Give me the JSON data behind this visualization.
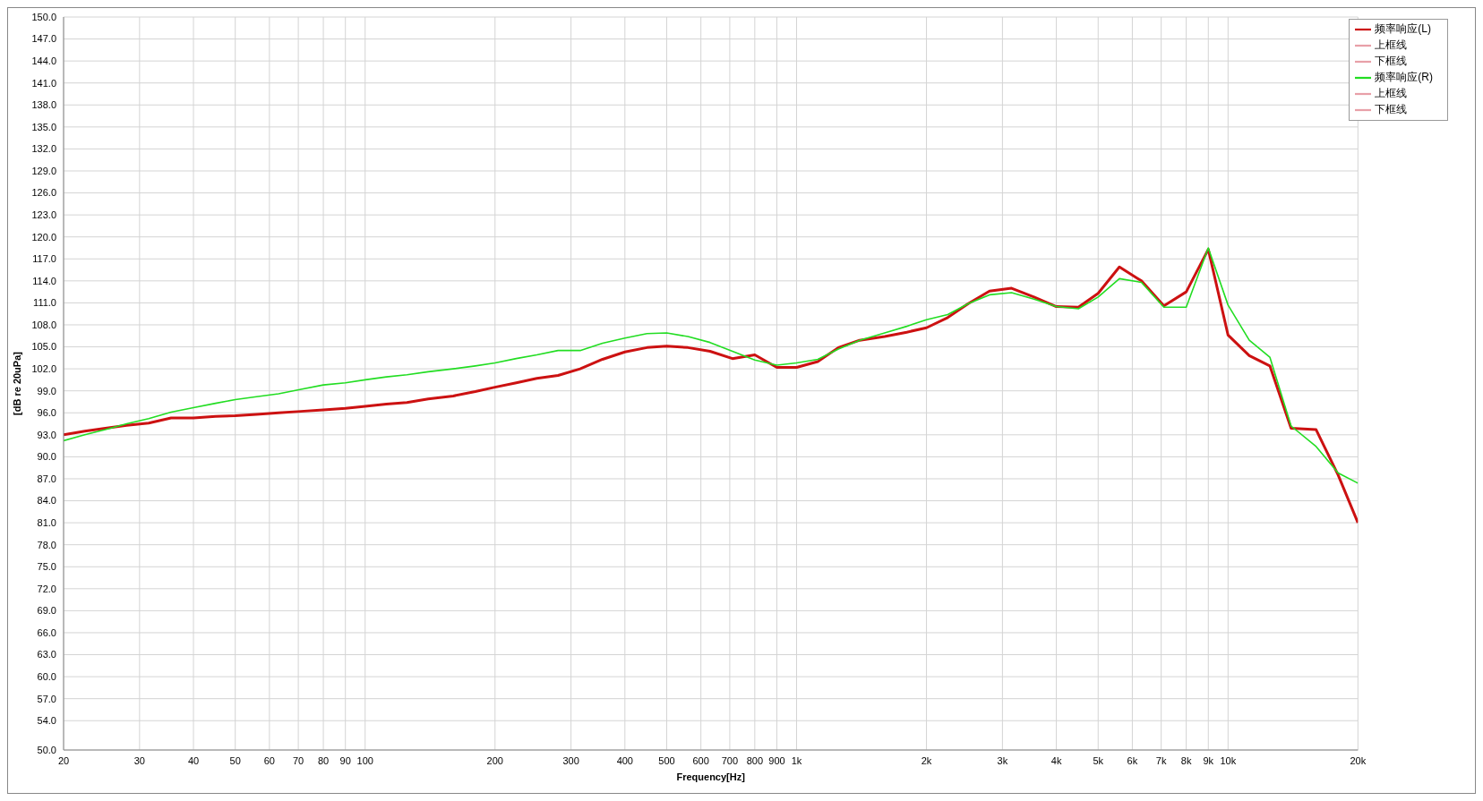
{
  "chart_data": {
    "type": "line",
    "xlabel": "Frequency[Hz]",
    "ylabel": "[dB re 20uPa]",
    "log": "x",
    "grid": true,
    "legend": "top right",
    "marker": "none",
    "line_style": "solid",
    "xlim": [
      20,
      20000
    ],
    "ylim": [
      50,
      150
    ],
    "xticks": [
      20,
      30,
      40,
      50,
      60,
      70,
      80,
      90,
      100,
      200,
      300,
      400,
      500,
      600,
      700,
      800,
      900,
      {
        "value": 1000,
        "label": "1k"
      },
      {
        "value": 2000,
        "label": "2k"
      },
      {
        "value": 3000,
        "label": "3k"
      },
      {
        "value": 4000,
        "label": "4k"
      },
      {
        "value": 5000,
        "label": "5k"
      },
      {
        "value": 6000,
        "label": "6k"
      },
      {
        "value": 7000,
        "label": "7k"
      },
      {
        "value": 8000,
        "label": "8k"
      },
      {
        "value": 9000,
        "label": "9k"
      },
      {
        "value": 10000,
        "label": "10k"
      },
      {
        "value": 20000,
        "label": "20k"
      }
    ],
    "yticks": [
      {
        "value": 50,
        "label": "50.0"
      },
      {
        "value": 54,
        "label": "54.0"
      },
      {
        "value": 57,
        "label": "57.0"
      },
      {
        "value": 60,
        "label": "60.0"
      },
      {
        "value": 63,
        "label": "63.0"
      },
      {
        "value": 66,
        "label": "66.0"
      },
      {
        "value": 69,
        "label": "69.0"
      },
      {
        "value": 72,
        "label": "72.0"
      },
      {
        "value": 75,
        "label": "75.0"
      },
      {
        "value": 78,
        "label": "78.0"
      },
      {
        "value": 81,
        "label": "81.0"
      },
      {
        "value": 84,
        "label": "84.0"
      },
      {
        "value": 87,
        "label": "87.0"
      },
      {
        "value": 90,
        "label": "90.0"
      },
      {
        "value": 93,
        "label": "93.0"
      },
      {
        "value": 96,
        "label": "96.0"
      },
      {
        "value": 99,
        "label": "99.0"
      },
      {
        "value": 102,
        "label": "102.0"
      },
      {
        "value": 105,
        "label": "105.0"
      },
      {
        "value": 108,
        "label": "108.0"
      },
      {
        "value": 111,
        "label": "111.0"
      },
      {
        "value": 114,
        "label": "114.0"
      },
      {
        "value": 117,
        "label": "117.0"
      },
      {
        "value": 120,
        "label": "120.0"
      },
      {
        "value": 123,
        "label": "123.0"
      },
      {
        "value": 126,
        "label": "126.0"
      },
      {
        "value": 129,
        "label": "129.0"
      },
      {
        "value": 132,
        "label": "132.0"
      },
      {
        "value": 135,
        "label": "135.0"
      },
      {
        "value": 138,
        "label": "138.0"
      },
      {
        "value": 141,
        "label": "141.0"
      },
      {
        "value": 144,
        "label": "144.0"
      },
      {
        "value": 147,
        "label": "147.0"
      },
      {
        "value": 150,
        "label": "150.0"
      }
    ],
    "x": [
      20,
      22.4,
      25,
      28,
      31.5,
      35.5,
      40,
      45,
      50,
      56,
      63,
      71,
      80,
      90,
      100,
      112,
      125,
      140,
      160,
      180,
      200,
      224,
      250,
      280,
      315,
      355,
      400,
      450,
      500,
      560,
      630,
      710,
      800,
      900,
      1000,
      1120,
      1250,
      1400,
      1600,
      1800,
      2000,
      2240,
      2500,
      2800,
      3150,
      3550,
      4000,
      4500,
      5000,
      5600,
      6300,
      7100,
      8000,
      9000,
      10000,
      11200,
      12500,
      14000,
      16000,
      18000,
      20000
    ],
    "series": [
      {
        "name": "频率响应(L)",
        "color": "#cc1111",
        "values": [
          93.0,
          93.5,
          93.9,
          94.3,
          94.6,
          95.3,
          95.3,
          95.5,
          95.6,
          95.8,
          96.0,
          96.2,
          96.4,
          96.6,
          96.9,
          97.2,
          97.4,
          97.9,
          98.3,
          98.9,
          99.5,
          100.1,
          100.7,
          101.1,
          102.0,
          103.3,
          104.3,
          104.9,
          105.1,
          104.9,
          104.4,
          103.4,
          103.9,
          102.2,
          102.2,
          103.0,
          104.9,
          105.9,
          106.4,
          107.0,
          107.6,
          109.0,
          110.9,
          112.6,
          113.0,
          111.8,
          110.5,
          110.4,
          112.3,
          115.9,
          114.0,
          110.6,
          112.5,
          118.3,
          106.6,
          103.8,
          102.4,
          93.9,
          93.7,
          87.5,
          81.0
        ]
      },
      {
        "name": "上框线",
        "color": "#e8a0a8",
        "values": [
          null,
          null,
          null,
          null,
          null,
          null,
          null,
          null,
          null,
          null,
          null,
          null,
          null,
          null,
          null,
          null,
          null,
          null,
          null,
          null,
          null,
          null,
          null,
          null,
          null,
          null,
          null,
          null,
          null,
          null,
          null,
          null,
          null,
          null,
          null,
          null,
          null,
          null,
          null,
          null,
          null,
          null,
          null,
          null,
          null,
          null,
          null,
          null,
          null,
          null,
          null,
          null,
          null,
          null,
          null,
          null,
          null,
          null,
          null,
          null,
          null
        ]
      },
      {
        "name": "下框线",
        "color": "#e8a0a8",
        "values": [
          null,
          null,
          null,
          null,
          null,
          null,
          null,
          null,
          null,
          null,
          null,
          null,
          null,
          null,
          null,
          null,
          null,
          null,
          null,
          null,
          null,
          null,
          null,
          null,
          null,
          null,
          null,
          null,
          null,
          null,
          null,
          null,
          null,
          null,
          null,
          null,
          null,
          null,
          null,
          null,
          null,
          null,
          null,
          null,
          null,
          null,
          null,
          null,
          null,
          null,
          null,
          null,
          null,
          null,
          null,
          null,
          null,
          null,
          null,
          null,
          null
        ]
      },
      {
        "name": "频率响应(R)",
        "color": "#22dd22",
        "values": [
          92.2,
          93.0,
          93.7,
          94.5,
          95.2,
          96.1,
          96.7,
          97.3,
          97.8,
          98.2,
          98.6,
          99.2,
          99.8,
          100.1,
          100.5,
          100.9,
          101.2,
          101.6,
          102.0,
          102.4,
          102.8,
          103.4,
          103.9,
          104.5,
          104.5,
          105.5,
          106.2,
          106.8,
          106.9,
          106.4,
          105.6,
          104.4,
          103.2,
          102.5,
          102.8,
          103.3,
          104.7,
          105.9,
          106.9,
          107.8,
          108.7,
          109.4,
          110.9,
          112.1,
          112.4,
          111.5,
          110.5,
          110.2,
          111.8,
          114.3,
          113.8,
          110.4,
          110.4,
          118.5,
          110.7,
          105.9,
          103.6,
          94.2,
          91.4,
          87.8,
          86.4
        ]
      },
      {
        "name": "上框线",
        "color": "#e8a0a8",
        "values": [
          null,
          null,
          null,
          null,
          null,
          null,
          null,
          null,
          null,
          null,
          null,
          null,
          null,
          null,
          null,
          null,
          null,
          null,
          null,
          null,
          null,
          null,
          null,
          null,
          null,
          null,
          null,
          null,
          null,
          null,
          null,
          null,
          null,
          null,
          null,
          null,
          null,
          null,
          null,
          null,
          null,
          null,
          null,
          null,
          null,
          null,
          null,
          null,
          null,
          null,
          null,
          null,
          null,
          null,
          null,
          null,
          null,
          null,
          null,
          null,
          null
        ]
      },
      {
        "name": "下框线",
        "color": "#e8a0a8",
        "values": [
          null,
          null,
          null,
          null,
          null,
          null,
          null,
          null,
          null,
          null,
          null,
          null,
          null,
          null,
          null,
          null,
          null,
          null,
          null,
          null,
          null,
          null,
          null,
          null,
          null,
          null,
          null,
          null,
          null,
          null,
          null,
          null,
          null,
          null,
          null,
          null,
          null,
          null,
          null,
          null,
          null,
          null,
          null,
          null,
          null,
          null,
          null,
          null,
          null,
          null,
          null,
          null,
          null,
          null,
          null,
          null,
          null,
          null,
          null,
          null,
          null
        ]
      }
    ]
  }
}
